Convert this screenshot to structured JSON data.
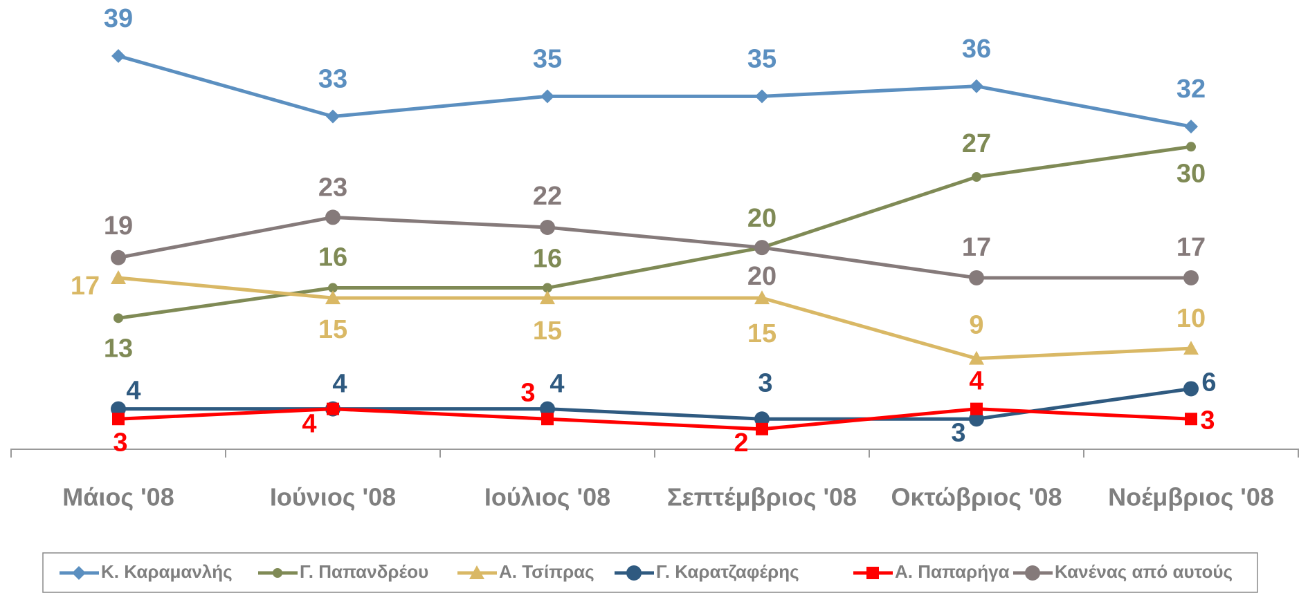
{
  "chart_data": {
    "type": "line",
    "categories": [
      "Μάιος '08",
      "Ιούνιος '08",
      "Ιούλιος '08",
      "Σεπτέμβριος '08",
      "Οκτώβριος '08",
      "Νοέμβριος '08"
    ],
    "ylim": [
      0,
      44
    ],
    "legend": "bottom",
    "series": [
      {
        "name": "Κ. Καραμανλής",
        "color": "#5b8fc0",
        "marker": "diamond",
        "values": [
          39,
          33,
          35,
          35,
          36,
          32
        ]
      },
      {
        "name": "Γ. Παπανδρέου",
        "color": "#7f8a55",
        "marker": "small-circle",
        "values": [
          13,
          16,
          16,
          20,
          27,
          30
        ]
      },
      {
        "name": "Α. Τσίπρας",
        "color": "#d9b865",
        "marker": "triangle",
        "values": [
          17,
          15,
          15,
          15,
          9,
          10
        ]
      },
      {
        "name": "Γ. Καρατζαφέρης",
        "color": "#2f5a80",
        "marker": "circle",
        "values": [
          4,
          4,
          4,
          3,
          3,
          6
        ]
      },
      {
        "name": "Α. Παπαρήγα",
        "color": "#ff0000",
        "marker": "square",
        "values": [
          3,
          4,
          3,
          2,
          4,
          3
        ]
      },
      {
        "name": "Κανένας από αυτούς",
        "color": "#857a7a",
        "marker": "circle",
        "values": [
          19,
          23,
          22,
          20,
          17,
          17
        ]
      }
    ]
  }
}
